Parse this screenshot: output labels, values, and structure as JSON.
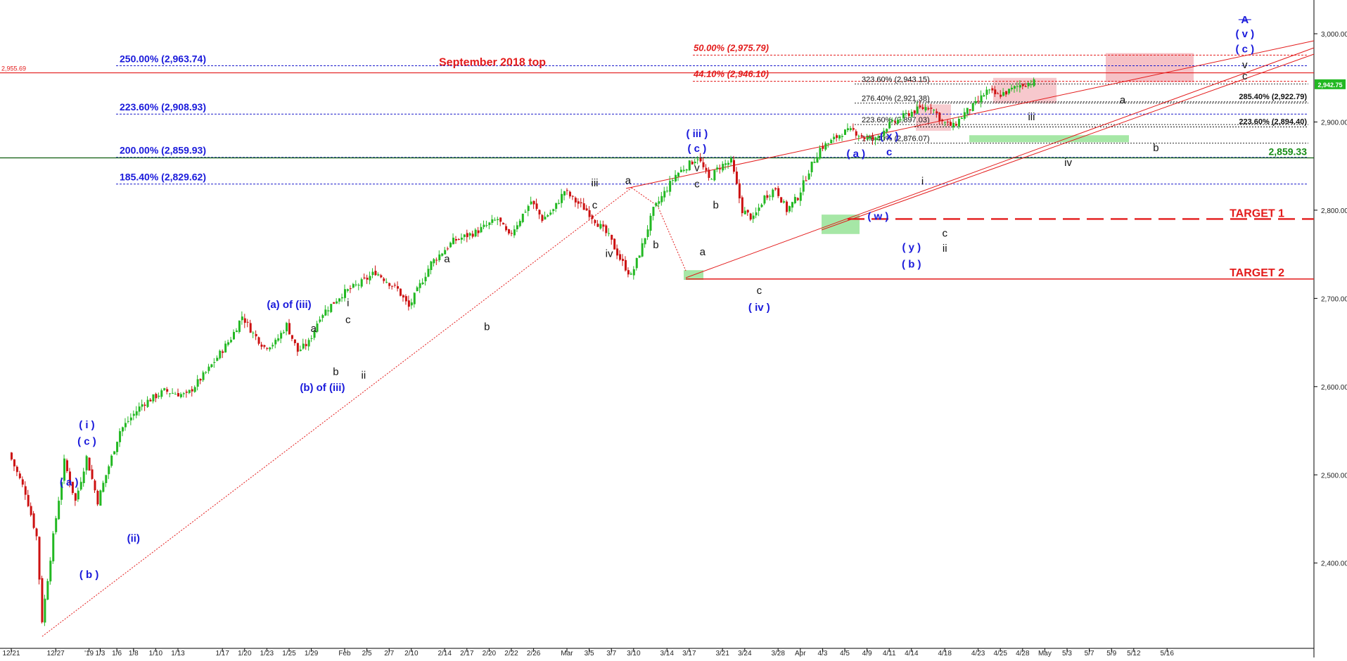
{
  "chart_data": {
    "type": "candlestick",
    "title": "",
    "xlabel": "",
    "ylabel": "",
    "ylim": [
      2330,
      3030
    ],
    "grid": false,
    "y_ticks": [
      2400,
      2500,
      2600,
      2700,
      2800,
      2900,
      3000
    ],
    "y_tick_labels": [
      "2,400.00",
      "2,500.00",
      "2,600.00",
      "2,700.00",
      "2,800.00",
      "2,900.00",
      "3,000.00"
    ],
    "x_ticks": [
      {
        "label": "12/21",
        "day": 0
      },
      {
        "label": "12/27",
        "day": 4
      },
      {
        "label": "'19",
        "day": 7
      },
      {
        "label": "1/3",
        "day": 8
      },
      {
        "label": "1/6",
        "day": 9.5
      },
      {
        "label": "1/8",
        "day": 11
      },
      {
        "label": "1/10",
        "day": 13
      },
      {
        "label": "1/13",
        "day": 15
      },
      {
        "label": "1/17",
        "day": 19
      },
      {
        "label": "1/20",
        "day": 21
      },
      {
        "label": "1/23",
        "day": 23
      },
      {
        "label": "1/25",
        "day": 25
      },
      {
        "label": "1/29",
        "day": 27
      },
      {
        "label": "Feb",
        "day": 30
      },
      {
        "label": "2/5",
        "day": 32
      },
      {
        "label": "2/7",
        "day": 34
      },
      {
        "label": "2/10",
        "day": 36
      },
      {
        "label": "2/14",
        "day": 39
      },
      {
        "label": "2/17",
        "day": 41
      },
      {
        "label": "2/20",
        "day": 43
      },
      {
        "label": "2/22",
        "day": 45
      },
      {
        "label": "2/26",
        "day": 47
      },
      {
        "label": "Mar",
        "day": 50
      },
      {
        "label": "3/5",
        "day": 52
      },
      {
        "label": "3/7",
        "day": 54
      },
      {
        "label": "3/10",
        "day": 56
      },
      {
        "label": "3/14",
        "day": 59
      },
      {
        "label": "3/17",
        "day": 61
      },
      {
        "label": "3/21",
        "day": 64
      },
      {
        "label": "3/24",
        "day": 66
      },
      {
        "label": "3/28",
        "day": 69
      },
      {
        "label": "Apr",
        "day": 71
      },
      {
        "label": "4/3",
        "day": 73
      },
      {
        "label": "4/5",
        "day": 75
      },
      {
        "label": "4/9",
        "day": 77
      },
      {
        "label": "4/11",
        "day": 79
      },
      {
        "label": "4/14",
        "day": 81
      },
      {
        "label": "4/18",
        "day": 84
      },
      {
        "label": "4/23",
        "day": 87
      },
      {
        "label": "4/25",
        "day": 89
      },
      {
        "label": "4/28",
        "day": 91
      },
      {
        "label": "May",
        "day": 93
      },
      {
        "label": "5/3",
        "day": 95
      },
      {
        "label": "5/7",
        "day": 97
      },
      {
        "label": "5/9",
        "day": 99
      },
      {
        "label": "5/12",
        "day": 101
      },
      {
        "label": "5/16",
        "day": 104
      }
    ],
    "price_path": [
      [
        0,
        2525
      ],
      [
        1.5,
        2480
      ],
      [
        2.5,
        2430
      ],
      [
        3,
        2335
      ],
      [
        4,
        2430
      ],
      [
        5,
        2515
      ],
      [
        6,
        2470
      ],
      [
        7,
        2520
      ],
      [
        8,
        2470
      ],
      [
        9,
        2510
      ],
      [
        10,
        2550
      ],
      [
        12,
        2580
      ],
      [
        14,
        2595
      ],
      [
        16,
        2590
      ],
      [
        18,
        2620
      ],
      [
        20,
        2655
      ],
      [
        21,
        2680
      ],
      [
        22,
        2660
      ],
      [
        23,
        2645
      ],
      [
        24,
        2650
      ],
      [
        25,
        2670
      ],
      [
        26,
        2640
      ],
      [
        27,
        2650
      ],
      [
        28,
        2680
      ],
      [
        30,
        2705
      ],
      [
        32,
        2720
      ],
      [
        33,
        2730
      ],
      [
        34,
        2720
      ],
      [
        35,
        2710
      ],
      [
        36,
        2690
      ],
      [
        38,
        2740
      ],
      [
        40,
        2765
      ],
      [
        42,
        2775
      ],
      [
        44,
        2790
      ],
      [
        45,
        2770
      ],
      [
        46,
        2790
      ],
      [
        47,
        2810
      ],
      [
        48,
        2790
      ],
      [
        49,
        2800
      ],
      [
        50,
        2822
      ],
      [
        51,
        2810
      ],
      [
        52,
        2800
      ],
      [
        54,
        2770
      ],
      [
        55,
        2745
      ],
      [
        56,
        2725
      ],
      [
        57,
        2760
      ],
      [
        58,
        2800
      ],
      [
        60,
        2840
      ],
      [
        62,
        2860
      ],
      [
        63,
        2835
      ],
      [
        64,
        2850
      ],
      [
        65,
        2855
      ],
      [
        66,
        2800
      ],
      [
        67,
        2790
      ],
      [
        68,
        2815
      ],
      [
        69,
        2825
      ],
      [
        70,
        2800
      ],
      [
        71,
        2815
      ],
      [
        72,
        2845
      ],
      [
        73,
        2870
      ],
      [
        74,
        2878
      ],
      [
        75,
        2888
      ],
      [
        76,
        2890
      ],
      [
        77,
        2882
      ],
      [
        78,
        2880
      ],
      [
        79,
        2895
      ],
      [
        80,
        2902
      ],
      [
        81,
        2910
      ],
      [
        82,
        2915
      ],
      [
        83,
        2918
      ],
      [
        84,
        2900
      ],
      [
        85,
        2895
      ],
      [
        86,
        2910
      ],
      [
        87,
        2920
      ],
      [
        88,
        2935
      ],
      [
        89,
        2930
      ],
      [
        90,
        2935
      ],
      [
        91,
        2942
      ],
      [
        92,
        2945
      ]
    ],
    "current_price": {
      "value": 2942.75,
      "label": "2,942.75"
    },
    "fib_lines": [
      {
        "value": 2963.74,
        "label": "250.00% (2,963.74)",
        "color": "#1a1acc"
      },
      {
        "value": 2908.93,
        "label": "223.60% (2,908.93)",
        "color": "#1a1acc"
      },
      {
        "value": 2859.93,
        "label": "200.00% (2,859.93)",
        "color": "#1a1acc"
      },
      {
        "value": 2829.62,
        "label": "185.40% (2,829.62)",
        "color": "#1a1acc"
      }
    ],
    "red_fib_lines": [
      {
        "value": 2975.79,
        "label": "50.00% (2,975.79)"
      },
      {
        "value": 2946.1,
        "label": "44.10% (2,946.10)"
      }
    ],
    "small_fib_lines": [
      {
        "value": 2943.15,
        "label": "323.60% (2,943.15)"
      },
      {
        "value": 2921.38,
        "label": "276.40% (2,921.38)"
      },
      {
        "value": 2897.03,
        "label": "223.60% (2,897.03)"
      },
      {
        "value": 2876.07,
        "label": "176.40% (2,876.07)"
      }
    ],
    "right_fib_lines": [
      {
        "value": 2922.79,
        "label": "285.40% (2,922.79)"
      },
      {
        "value": 2894.4,
        "label": "223.60% (2,894.40)"
      }
    ],
    "sept_top": {
      "value": 2955.69,
      "label": "September 2018 top",
      "axis_label": "2,955.69"
    },
    "support_2859": {
      "value": 2859.33,
      "label": "2,859.33"
    },
    "targets": [
      {
        "value": 2790,
        "label": "TARGET 1"
      },
      {
        "value": 2722,
        "label": "TARGET 2"
      }
    ],
    "wave_labels": [
      {
        "text": "( i )",
        "day": 6.8,
        "price": 2553,
        "color": "blue"
      },
      {
        "text": "( c )",
        "day": 6.8,
        "price": 2534,
        "color": "blue"
      },
      {
        "text": "( a )",
        "day": 5.2,
        "price": 2488,
        "color": "blue"
      },
      {
        "text": "( b )",
        "day": 7.0,
        "price": 2383,
        "color": "blue"
      },
      {
        "text": "(ii)",
        "day": 11.0,
        "price": 2424,
        "color": "blue"
      },
      {
        "text": "(a) of (iii)",
        "day": 25.0,
        "price": 2689,
        "color": "blue"
      },
      {
        "text": "(b) of (iii)",
        "day": 28.0,
        "price": 2595,
        "color": "blue"
      },
      {
        "text": "a",
        "day": 27.2,
        "price": 2662,
        "color": "black"
      },
      {
        "text": "b",
        "day": 29.2,
        "price": 2613,
        "color": "black"
      },
      {
        "text": "i",
        "day": 30.3,
        "price": 2691,
        "color": "black"
      },
      {
        "text": "c",
        "day": 30.3,
        "price": 2672,
        "color": "black"
      },
      {
        "text": "ii",
        "day": 31.7,
        "price": 2609,
        "color": "black"
      },
      {
        "text": "a",
        "day": 39.2,
        "price": 2741,
        "color": "black"
      },
      {
        "text": "b",
        "day": 42.8,
        "price": 2664,
        "color": "black"
      },
      {
        "text": "iii",
        "day": 52.5,
        "price": 2827,
        "color": "black"
      },
      {
        "text": "c",
        "day": 52.5,
        "price": 2802,
        "color": "black"
      },
      {
        "text": "a",
        "day": 55.5,
        "price": 2830,
        "color": "black"
      },
      {
        "text": "iv",
        "day": 53.8,
        "price": 2747,
        "color": "black"
      },
      {
        "text": "b",
        "day": 58.0,
        "price": 2757,
        "color": "black"
      },
      {
        "text": "( iii )",
        "day": 61.7,
        "price": 2883,
        "color": "blue"
      },
      {
        "text": "( c )",
        "day": 61.7,
        "price": 2866,
        "color": "blue"
      },
      {
        "text": "v",
        "day": 61.7,
        "price": 2844,
        "color": "black"
      },
      {
        "text": "c",
        "day": 61.7,
        "price": 2826,
        "color": "black"
      },
      {
        "text": "b",
        "day": 63.4,
        "price": 2802,
        "color": "black"
      },
      {
        "text": "a",
        "day": 62.2,
        "price": 2749,
        "color": "black"
      },
      {
        "text": "c",
        "day": 67.3,
        "price": 2705,
        "color": "black"
      },
      {
        "text": "( iv )",
        "day": 67.3,
        "price": 2686,
        "color": "blue"
      },
      {
        "text": "( a )",
        "day": 76.0,
        "price": 2860,
        "color": "blue"
      },
      {
        "text": "( x )",
        "day": 79.0,
        "price": 2880,
        "color": "blue"
      },
      {
        "text": "c",
        "day": 79.0,
        "price": 2862,
        "color": "blue"
      },
      {
        "text": "( w )",
        "day": 78.0,
        "price": 2789,
        "color": "blue"
      },
      {
        "text": "i",
        "day": 82.0,
        "price": 2829,
        "color": "black"
      },
      {
        "text": "( y )",
        "day": 81.0,
        "price": 2754,
        "color": "blue"
      },
      {
        "text": "( b )",
        "day": 81.0,
        "price": 2735,
        "color": "blue"
      },
      {
        "text": "c",
        "day": 84.0,
        "price": 2770,
        "color": "black"
      },
      {
        "text": "ii",
        "day": 84.0,
        "price": 2753,
        "color": "black"
      },
      {
        "text": "iii",
        "day": 91.8,
        "price": 2902,
        "color": "black"
      },
      {
        "text": "iv",
        "day": 95.1,
        "price": 2850,
        "color": "black"
      },
      {
        "text": "a",
        "day": 100.0,
        "price": 2921,
        "color": "black"
      },
      {
        "text": "b",
        "day": 103.0,
        "price": 2867,
        "color": "black"
      },
      {
        "text": "A",
        "day": 111.0,
        "price": 3012,
        "color": "blue"
      },
      {
        "text": "( v )",
        "day": 111.0,
        "price": 2996,
        "color": "blue"
      },
      {
        "text": "( c )",
        "day": 111.0,
        "price": 2979,
        "color": "blue"
      },
      {
        "text": "v",
        "day": 111.0,
        "price": 2961,
        "color": "black"
      },
      {
        "text": "c",
        "day": 111.0,
        "price": 2948,
        "color": "black"
      }
    ],
    "colors": {
      "up": "#22b822",
      "down": "#cc1111",
      "blue_label": "#1a1adb",
      "red_line": "#e31b1b",
      "green_text": "#168c16",
      "pink_box": "#f4b6bc",
      "green_box": "#9ce49c"
    }
  }
}
